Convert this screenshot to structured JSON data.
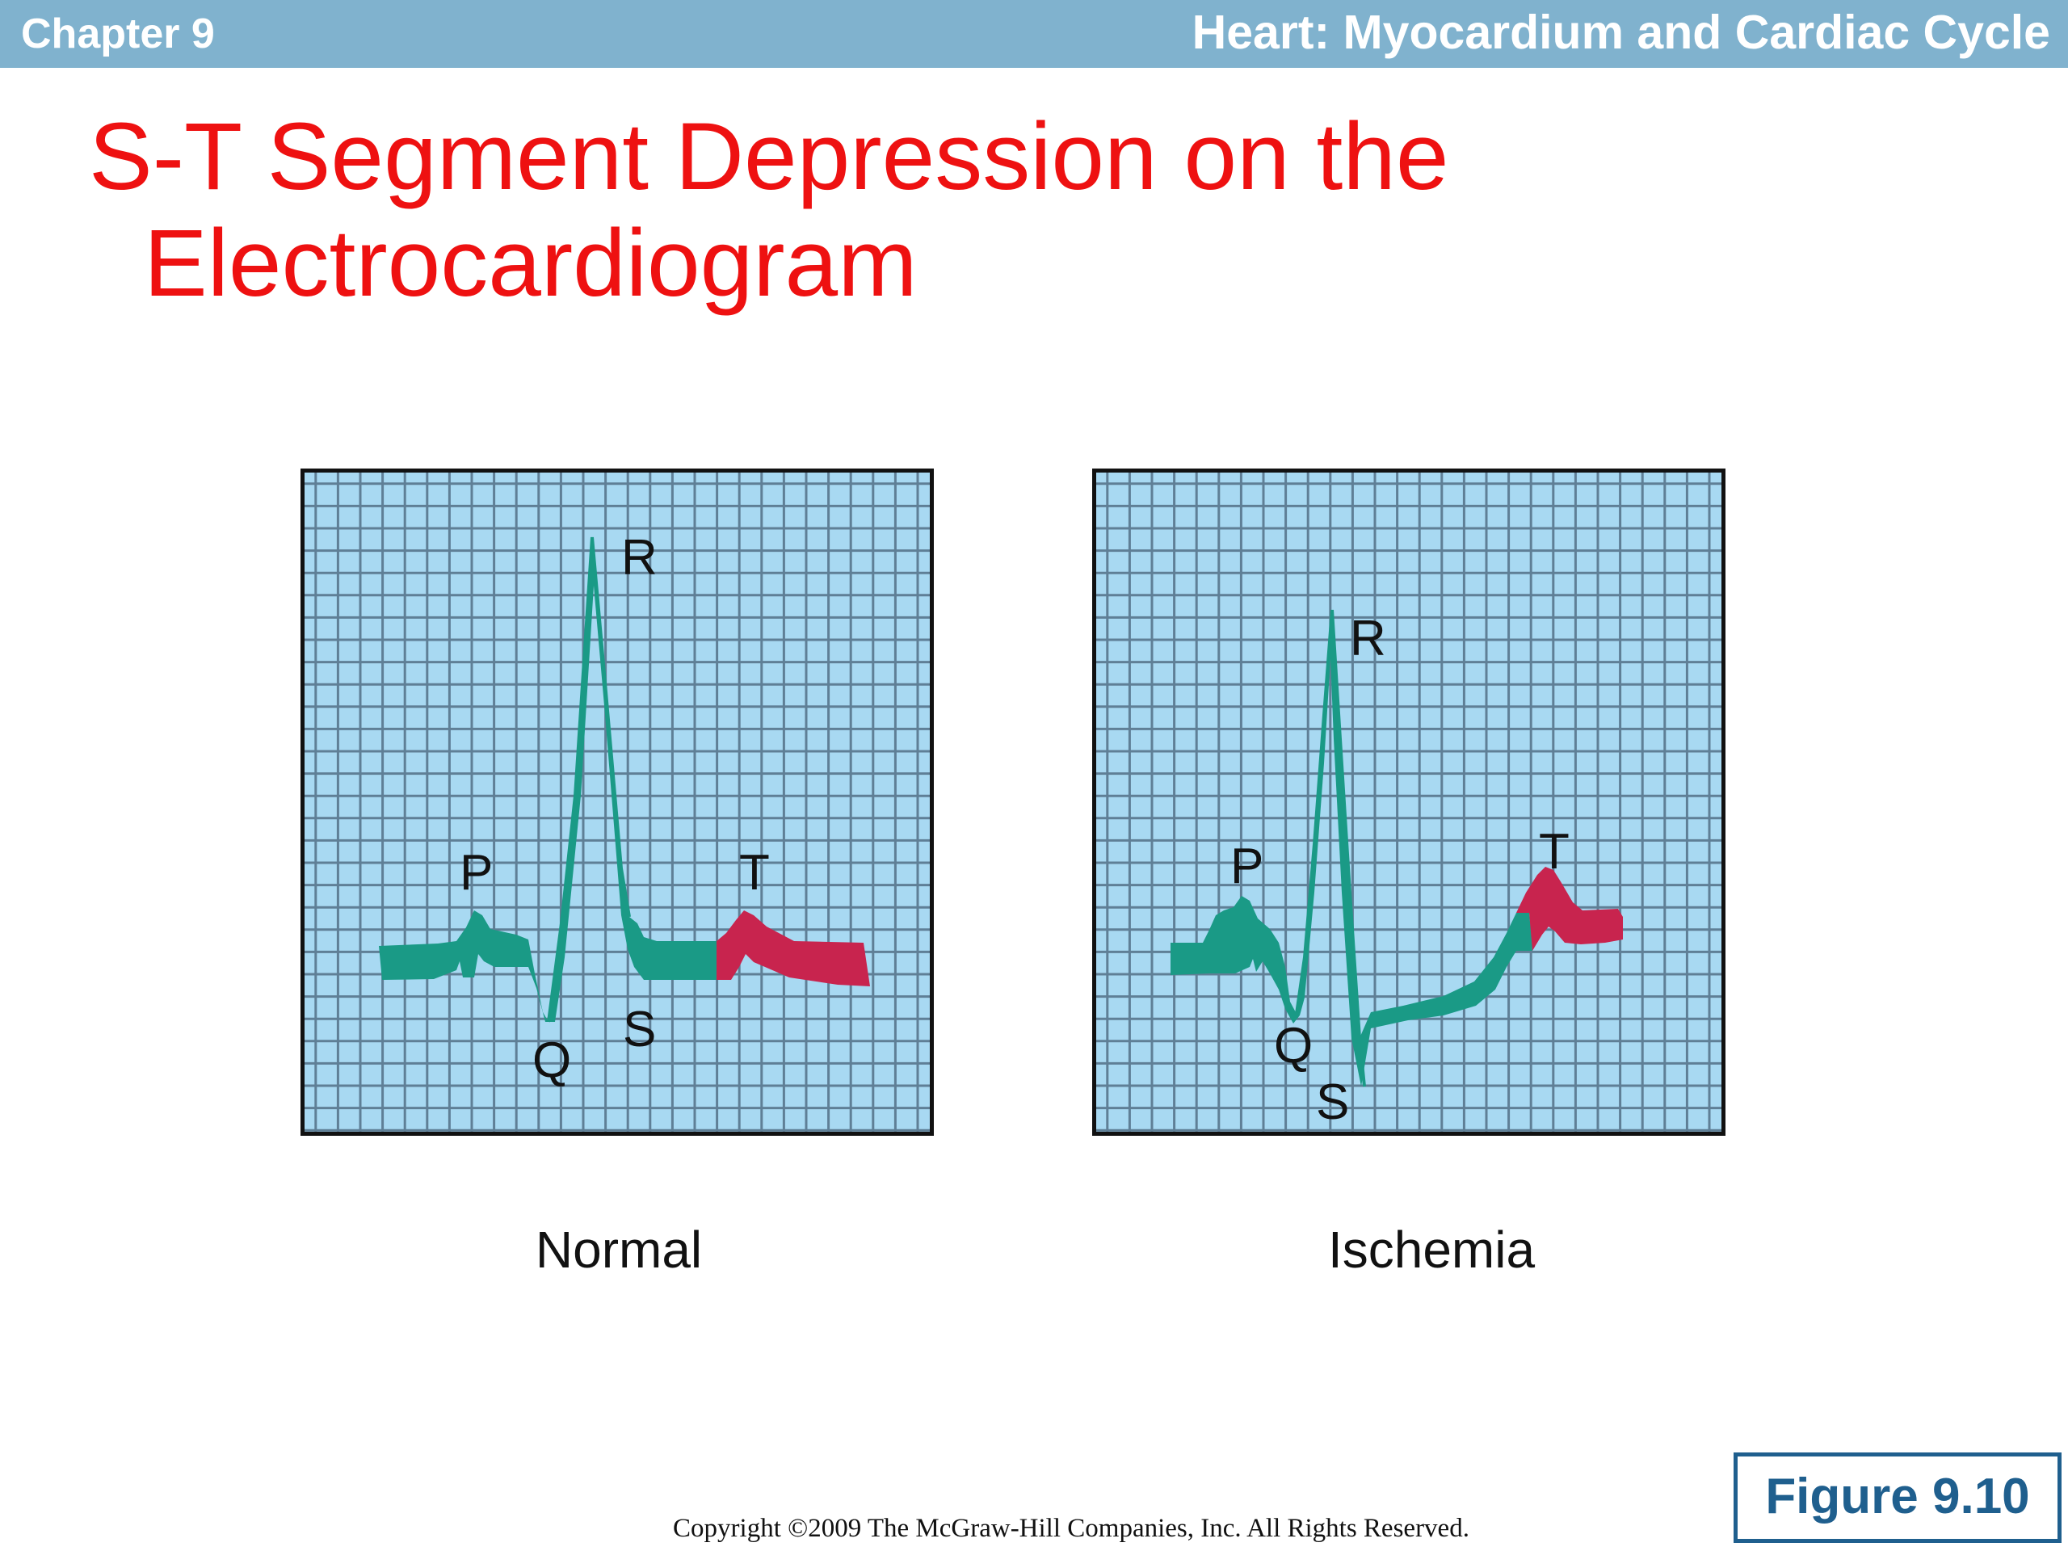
{
  "header": {
    "chapter": "Chapter 9",
    "title": "Heart: Myocardium and Cardiac Cycle"
  },
  "slide": {
    "title_line1": "S-T Segment Depression on the",
    "title_line2": "Electrocardiogram"
  },
  "panels": [
    {
      "id": "normal",
      "caption": "Normal",
      "wave_labels": {
        "p": "P",
        "q": "Q",
        "r": "R",
        "s": "S",
        "t": "T"
      }
    },
    {
      "id": "ischemia",
      "caption": "Ischemia",
      "wave_labels": {
        "p": "P",
        "q": "Q",
        "r": "R",
        "s": "S",
        "t": "T"
      }
    }
  ],
  "colors": {
    "grid_background": "#a8d9f2",
    "grid_lines": "#5f7f96",
    "trace_green": "#1a9a86",
    "t_wave_magenta": "#c8244e",
    "title_red": "#ee1111",
    "header_blue": "#80b2ce",
    "figure_blue": "#1f5f8e"
  },
  "footer": {
    "copyright": "Copyright ©2009 The McGraw-Hill Companies, Inc. All Rights Reserved.",
    "figure_label": "Figure 9.10"
  }
}
